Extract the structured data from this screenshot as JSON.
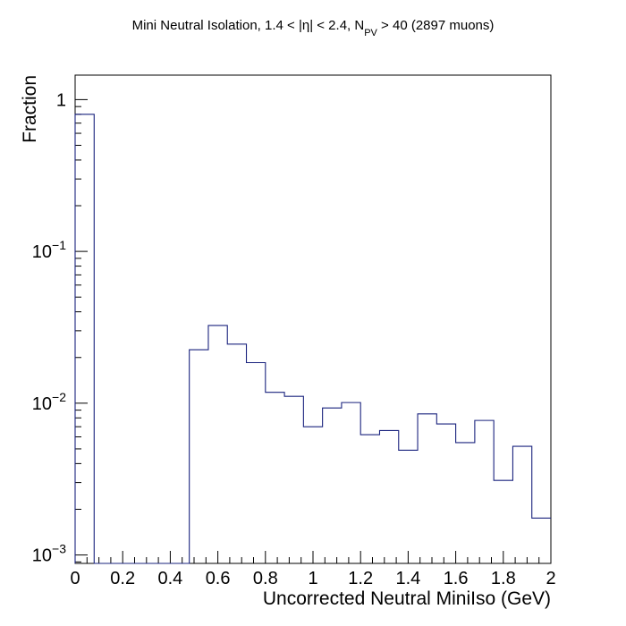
{
  "chart_data": {
    "type": "histogram",
    "title_main": "Mini Neutral Isolation, 1.4 < |η| < 2.4, N",
    "title_sub": "PV",
    "title_rest": " > 40 (2897 muons)",
    "xlabel": "Uncorrected Neutral MiniIso (GeV)",
    "ylabel": "Fraction",
    "xlim": [
      0,
      2
    ],
    "ylim": [
      0.00088,
      1.45
    ],
    "yscale": "log",
    "x_ticks": [
      "0",
      "0.2",
      "0.4",
      "0.6",
      "0.8",
      "1",
      "1.2",
      "1.4",
      "1.6",
      "1.8",
      "2"
    ],
    "y_ticks": [
      {
        "base": "1",
        "exp": ""
      },
      {
        "base": "10",
        "exp": "−1"
      },
      {
        "base": "10",
        "exp": "−2"
      },
      {
        "base": "10",
        "exp": "−3"
      }
    ],
    "bin_width": 0.08,
    "bins": [
      {
        "x": 0.0,
        "value": 0.8
      },
      {
        "x": 0.08,
        "value": 0
      },
      {
        "x": 0.16,
        "value": 0
      },
      {
        "x": 0.24,
        "value": 0
      },
      {
        "x": 0.32,
        "value": 0
      },
      {
        "x": 0.4,
        "value": 0
      },
      {
        "x": 0.48,
        "value": 0.0225
      },
      {
        "x": 0.56,
        "value": 0.0325
      },
      {
        "x": 0.64,
        "value": 0.0245
      },
      {
        "x": 0.72,
        "value": 0.0185
      },
      {
        "x": 0.8,
        "value": 0.0118
      },
      {
        "x": 0.88,
        "value": 0.0111
      },
      {
        "x": 0.96,
        "value": 0.007
      },
      {
        "x": 1.04,
        "value": 0.0093
      },
      {
        "x": 1.12,
        "value": 0.0101
      },
      {
        "x": 1.2,
        "value": 0.0062
      },
      {
        "x": 1.28,
        "value": 0.0066
      },
      {
        "x": 1.36,
        "value": 0.0049
      },
      {
        "x": 1.44,
        "value": 0.0085
      },
      {
        "x": 1.52,
        "value": 0.0073
      },
      {
        "x": 1.6,
        "value": 0.0055
      },
      {
        "x": 1.68,
        "value": 0.0077
      },
      {
        "x": 1.76,
        "value": 0.0031
      },
      {
        "x": 1.84,
        "value": 0.0052
      },
      {
        "x": 1.92,
        "value": 0.00175
      }
    ],
    "line_color": "#1a237e",
    "axis_color": "#000000"
  }
}
